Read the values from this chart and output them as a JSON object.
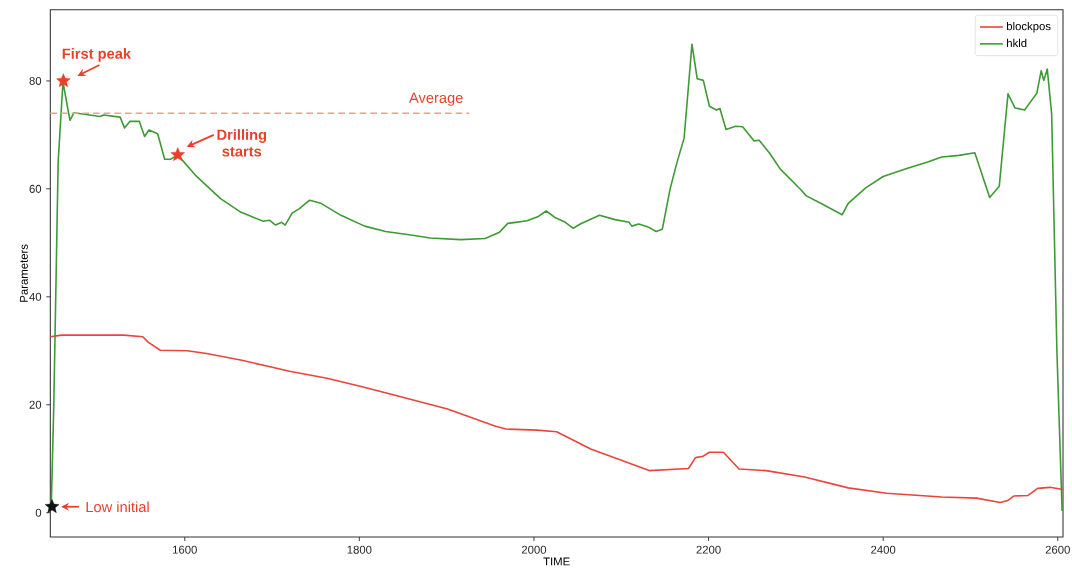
{
  "chart_data": {
    "type": "line",
    "xlabel": "TIME",
    "ylabel": "Parameters",
    "xlim": [
      1446,
      2606
    ],
    "ylim": [
      -4.5,
      93.2
    ],
    "xticks": [
      1600,
      1800,
      2000,
      2200,
      2400,
      2600
    ],
    "yticks": [
      0,
      20,
      40,
      60,
      80
    ],
    "legend": "top right",
    "grid": false,
    "series": [
      {
        "name": "blockpos",
        "color": "#e8453c",
        "x": [
          1446,
          1459,
          1530,
          1552,
          1558,
          1572,
          1603,
          1625,
          1664,
          1704,
          1720,
          1763,
          1802,
          1842,
          1901,
          1956,
          1968,
          2003,
          2026,
          2065,
          2132,
          2177,
          2185,
          2193,
          2201,
          2217,
          2235,
          2266,
          2310,
          2360,
          2404,
          2467,
          2507,
          2534,
          2542,
          2550,
          2566,
          2577,
          2591,
          2606
        ],
        "values": [
          32.6,
          32.9,
          32.9,
          32.6,
          31.6,
          30.1,
          30,
          29.5,
          28.3,
          26.8,
          26.2,
          24.9,
          23.4,
          21.7,
          19.2,
          16,
          15.5,
          15.3,
          15,
          11.8,
          7.8,
          8.2,
          10.2,
          10.4,
          11.2,
          11.2,
          8.1,
          7.8,
          6.6,
          4.6,
          3.6,
          2.9,
          2.7,
          1.9,
          2.2,
          3.1,
          3.2,
          4.5,
          4.7,
          4.3
        ]
      },
      {
        "name": "hkld",
        "color": "#3f9a35",
        "x": [
          1447,
          1450,
          1455,
          1460.5,
          1468.5,
          1473,
          1503,
          1507,
          1526,
          1531,
          1537,
          1548,
          1554,
          1559,
          1569,
          1577,
          1584,
          1592,
          1613,
          1641,
          1664,
          1690,
          1697,
          1704,
          1711,
          1715,
          1723,
          1731,
          1743,
          1755,
          1779,
          1806,
          1830,
          1861,
          1881,
          1916,
          1944,
          1960,
          1970,
          1979,
          1992,
          2005,
          2014,
          2024,
          2036,
          2045,
          2053,
          2075,
          2093,
          2109,
          2112,
          2120,
          2130,
          2140,
          2147,
          2156,
          2164,
          2172,
          2181,
          2187,
          2194,
          2201,
          2209,
          2213,
          2220,
          2231,
          2239,
          2252,
          2258,
          2270,
          2282,
          2306,
          2312,
          2329,
          2353,
          2360,
          2380,
          2400,
          2428,
          2451,
          2467,
          2487,
          2505,
          2522,
          2533,
          2543,
          2551,
          2562,
          2570,
          2576,
          2581,
          2584,
          2588,
          2593,
          2599,
          2605
        ],
        "values": [
          0.5,
          20,
          65,
          79.8,
          72.7,
          74.1,
          73.4,
          73.7,
          73.3,
          71.3,
          72.5,
          72.5,
          69.7,
          70.9,
          70.2,
          65.5,
          65.5,
          66.3,
          62.4,
          58.2,
          55.7,
          54,
          54.2,
          53.3,
          53.8,
          53.3,
          55.5,
          56.3,
          57.9,
          57.4,
          55.1,
          53.1,
          52.1,
          51.4,
          50.9,
          50.6,
          50.8,
          51.9,
          53.6,
          53.8,
          54.1,
          54.9,
          55.9,
          54.7,
          53.8,
          52.7,
          53.5,
          55.1,
          54.3,
          53.8,
          53.1,
          53.5,
          53,
          52.1,
          52.5,
          60,
          65,
          69.4,
          86.8,
          80.4,
          80.1,
          75.3,
          74.6,
          74.9,
          71,
          71.6,
          71.5,
          68.9,
          69,
          66.6,
          63.7,
          59.8,
          58.7,
          57.3,
          55.2,
          57.3,
          60.2,
          62.3,
          63.8,
          65,
          65.9,
          66.2,
          66.7,
          58.4,
          60.5,
          77.6,
          75,
          74.6,
          76.4,
          77.7,
          81.9,
          80.1,
          82.2,
          73.9,
          30,
          0.3
        ]
      },
      {
        "type": "line",
        "color": "#f0a08e",
        "line_style": "dashed",
        "x": [
          1446,
          1926
        ],
        "values": [
          74,
          74
        ]
      },
      {
        "type": "scatter",
        "marker": "star",
        "colors": [
          "#e8402a",
          "#e8402a",
          "#111111"
        ],
        "x": [
          1461,
          1592,
          1448
        ],
        "values": [
          80,
          66.3,
          1.1
        ]
      }
    ],
    "annotations": [
      {
        "text": "First peak",
        "x": 1461,
        "y": 80
      },
      {
        "text": "Drilling starts",
        "x": 1592,
        "y": 66.3
      },
      {
        "text": "Low initial",
        "x": 1448,
        "y": 1.1
      },
      {
        "text": "Average",
        "x": 1888,
        "y": 74
      }
    ]
  }
}
